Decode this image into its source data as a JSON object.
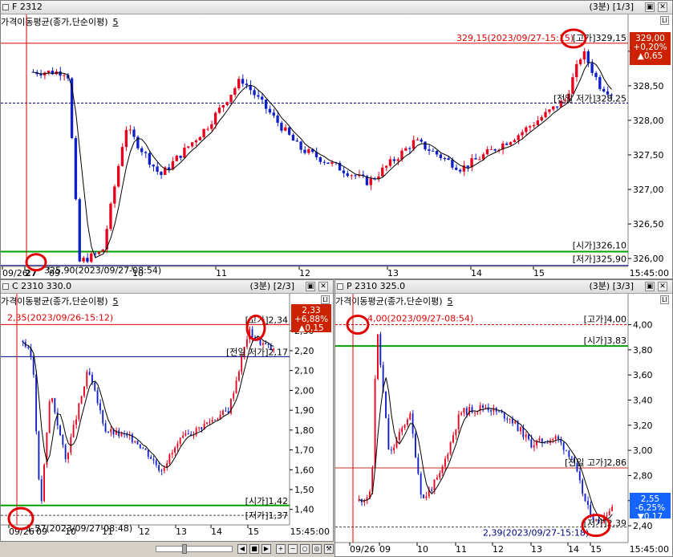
{
  "panels": [
    {
      "title": "F 2312",
      "period": "(3분)",
      "page": "[1/3]",
      "indicator": "가격이동평균(종가,단순이평)",
      "indicator_n": "5"
    },
    {
      "title": "C 2310 330.0",
      "period": "(3분)",
      "page": "[2/3]",
      "indicator": "가격이동평균(종가,단순이평)",
      "indicator_n": "5"
    },
    {
      "title": "P 2310 325.0",
      "period": "(3분)",
      "page": "[3/3]",
      "indicator": "가격이동평균(종가,단순이평)",
      "indicator_n": "5"
    }
  ],
  "icons": {
    "restore": "restore-icon",
    "close": "close-icon",
    "options": "chart-options-icon"
  },
  "colors": {
    "up": "#e8001c",
    "down": "#1020c8",
    "ma": "#000000",
    "open_line": "#00a000",
    "prev_low": "#000080",
    "price_box_up": "#cc2200",
    "price_box_down": "#1464ff",
    "highlight": "#e00000"
  },
  "chart_data": [
    {
      "type": "candlestick",
      "name": "F 2312",
      "yticks": [
        "329,00",
        "328,50",
        "328,00",
        "327,50",
        "327,00",
        "326,50",
        "326,00"
      ],
      "ylim": [
        325.85,
        329.3
      ],
      "xticks": [
        "09/26",
        "27",
        "09",
        "10",
        "11",
        "12",
        "13",
        "14",
        "15"
      ],
      "hline_labels": {
        "high_line": "329,15(2023/09/27-15:15)",
        "high_tag": "[고가]329,15",
        "prev_low": "[전일 저가]328,25",
        "open": "[시가]326,10",
        "low": "[저가]325,90"
      },
      "low_annotation": "325,90(2023/09/27-08:54)",
      "levels": {
        "high": 329.15,
        "prev_low": 328.25,
        "open": 326.1,
        "low": 325.9
      },
      "price_box": [
        "329,00",
        "+0,20%",
        "▲0,65"
      ],
      "time_label": "15:45:00"
    },
    {
      "type": "candlestick",
      "name": "C 2310 330.0",
      "yticks": [
        "2,30",
        "2,20",
        "2,10",
        "2,00",
        "1,90",
        "1,80",
        "1,70",
        "1,60",
        "1,50",
        "1,40"
      ],
      "ylim": [
        1.33,
        2.39
      ],
      "xticks": [
        "09/26",
        "09",
        "10",
        "11",
        "12",
        "13",
        "14",
        "15"
      ],
      "hline_labels": {
        "high_line": "2,35(2023/09/26-15:12)",
        "high_tag": "[고가]2,34",
        "prev_low": "[전일 저가]2,17",
        "open": "[시가]1,42",
        "low": "[저가]1,37"
      },
      "low_annotation": "1,37(2023/09/27-08:48)",
      "levels": {
        "high": 2.34,
        "prev_low": 2.17,
        "open": 1.42,
        "low": 1.37
      },
      "price_box": [
        "2,33",
        "+6,88%",
        "▲0,15"
      ],
      "time_label": "15:45:00"
    },
    {
      "type": "candlestick",
      "name": "P 2310 325.0",
      "yticks": [
        "4,00",
        "3,80",
        "3,60",
        "3,40",
        "3,20",
        "3,00",
        "2,80",
        "2,60",
        "2,40"
      ],
      "ylim": [
        2.33,
        4.08
      ],
      "xticks": [
        "09/26",
        "09",
        "10",
        "11",
        "12",
        "13",
        "14",
        "15"
      ],
      "hline_labels": {
        "high_line": "4,00(2023/09/27-08:54)",
        "high_tag": "[고가]4,00",
        "open": "[시가]3,83",
        "prev_high": "[전일 고가]2,86",
        "low": "[저가]2,39"
      },
      "low_annotation": "2,39(2023/09/27-15:18)",
      "levels": {
        "high": 4.0,
        "open": 3.83,
        "prev_high": 2.86,
        "low": 2.39
      },
      "price_box": [
        "2,55",
        "-6,25%",
        "▼0,17"
      ],
      "time_label": "15:45:00"
    }
  ]
}
